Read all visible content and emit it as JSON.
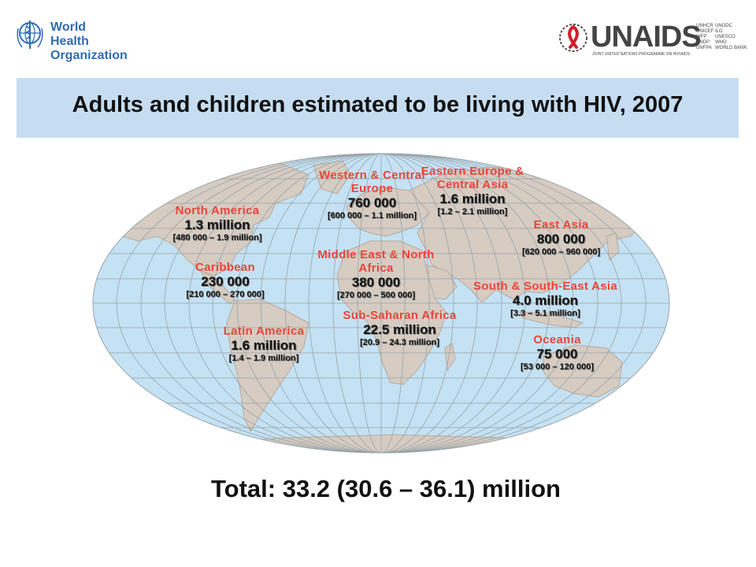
{
  "header": {
    "who_logo": {
      "icon": "who-emblem-icon",
      "line1": "World Health",
      "line2": "Organization"
    },
    "unaids_logo": {
      "icon": "red-ribbon-icon",
      "wordmark": "UNAIDS",
      "tagline": "JOINT UNITED NATIONS PROGRAMME ON HIV/AIDS",
      "cosponsors_col1": [
        "UNHCR",
        "UNICEF",
        "WFP",
        "UNDP",
        "UNFPA"
      ],
      "cosponsors_col2": [
        "UNODC",
        "ILO",
        "UNESCO",
        "WHO",
        "WORLD BANK"
      ]
    }
  },
  "title": "Adults and children estimated to be living with HIV, 2007",
  "colors": {
    "ocean": "#c4e2f4",
    "land": "#d6ccc2",
    "title_band": "#c6ddf1",
    "region_name": "#e8453c"
  },
  "map": {
    "regions": [
      {
        "name": "North America",
        "value": "1.3 million",
        "range": "[480 000 – 1.9 million]"
      },
      {
        "name": "Caribbean",
        "value": "230 000",
        "range": "[210 000 – 270 000]"
      },
      {
        "name": "Latin America",
        "value": "1.6 million",
        "range": "[1.4 – 1.9 million]"
      },
      {
        "name": "Western & Central Europe",
        "value": "760 000",
        "range": "[600 000 – 1.1 million]"
      },
      {
        "name": "Eastern Europe & Central Asia",
        "value": "1.6 million",
        "range": "[1.2 – 2.1 million]"
      },
      {
        "name": "Middle East & North Africa",
        "value": "380 000",
        "range": "[270 000 – 500 000]"
      },
      {
        "name": "Sub-Saharan Africa",
        "value": "22.5 million",
        "range": "[20.9 – 24.3 million]"
      },
      {
        "name": "East Asia",
        "value": "800 000",
        "range": "[620 000 – 960 000]"
      },
      {
        "name": "South & South-East Asia",
        "value": "4.0 million",
        "range": "[3.3 – 5.1 million]"
      },
      {
        "name": "Oceania",
        "value": "75 000",
        "range": "[53 000 – 120 000]"
      }
    ]
  },
  "total": "Total: 33.2 (30.6 – 36.1) million"
}
